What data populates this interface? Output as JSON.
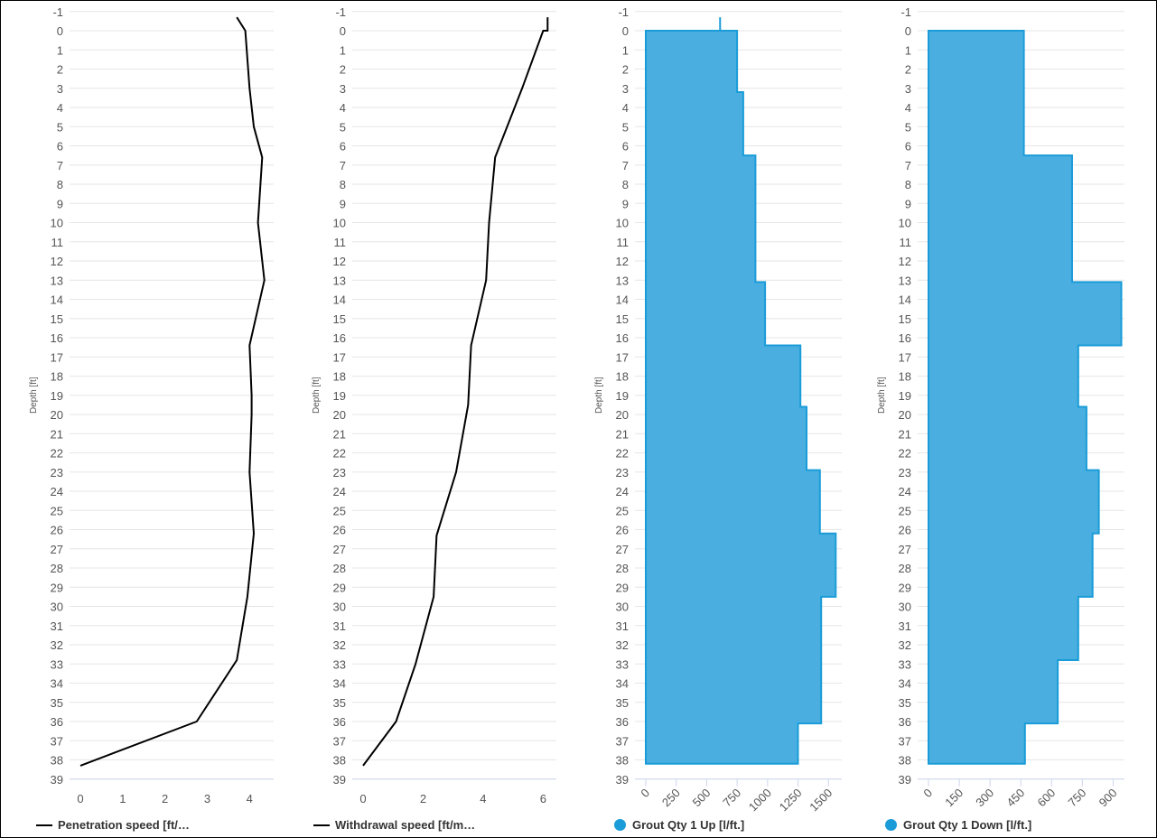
{
  "chart_data": [
    {
      "type": "line",
      "ylabel": "Depth [ft]",
      "ylim": [
        -1,
        39
      ],
      "y_reversed": true,
      "xlim": [
        0,
        4.4
      ],
      "xticks": [
        0,
        1,
        2,
        3,
        4
      ],
      "grid": true,
      "legend": "bottom-left",
      "series": [
        {
          "name": "Penetration speed [ft/…",
          "color": "#000000",
          "x": [
            3.7,
            3.9,
            4.0,
            4.1,
            4.3,
            4.2,
            4.35,
            4.0,
            4.05,
            4.05,
            4.0,
            4.1,
            3.95,
            3.7,
            2.75,
            0.0
          ],
          "y": [
            -0.7,
            0,
            3,
            5,
            6.6,
            10,
            13,
            16.4,
            19,
            20,
            23,
            26.2,
            29.5,
            32.8,
            36,
            38.3
          ]
        }
      ]
    },
    {
      "type": "line",
      "ylabel": "Depth [ft]",
      "ylim": [
        -1,
        39
      ],
      "y_reversed": true,
      "xlim": [
        0,
        6.2
      ],
      "xticks": [
        0,
        2,
        4,
        6
      ],
      "grid": true,
      "legend": "bottom-left",
      "series": [
        {
          "name": "Withdrawal speed [ft/m…",
          "color": "#000000",
          "x": [
            6.15,
            6.15,
            6.0,
            5.3,
            4.4,
            4.2,
            4.1,
            3.6,
            3.5,
            3.1,
            2.45,
            2.35,
            1.75,
            1.1,
            0.0
          ],
          "y": [
            -0.7,
            0,
            0,
            3,
            6.6,
            10,
            13,
            16.4,
            19.5,
            23,
            26.3,
            29.5,
            33,
            36,
            38.3
          ]
        }
      ]
    },
    {
      "type": "area",
      "step": true,
      "ylabel": "Depth [ft]",
      "ylim": [
        -1,
        39
      ],
      "y_reversed": true,
      "xlim": [
        0,
        1550
      ],
      "xticks": [
        0,
        250,
        500,
        750,
        1000,
        1250,
        1500
      ],
      "grid": true,
      "legend": "bottom-left",
      "series": [
        {
          "name": "Grout Qty 1 Up [l/ft.]",
          "color": "#1a9cd8",
          "fill": "#4aafe0",
          "stem": {
            "x": 610,
            "y": [
              -0.7,
              0
            ]
          },
          "steps": [
            {
              "from": 0,
              "to": 3.2,
              "x": 750
            },
            {
              "from": 3.2,
              "to": 6.5,
              "x": 800
            },
            {
              "from": 6.5,
              "to": 13.1,
              "x": 900
            },
            {
              "from": 13.1,
              "to": 16.4,
              "x": 980
            },
            {
              "from": 16.4,
              "to": 19.6,
              "x": 1270
            },
            {
              "from": 19.6,
              "to": 22.9,
              "x": 1320
            },
            {
              "from": 22.9,
              "to": 26.2,
              "x": 1430
            },
            {
              "from": 26.2,
              "to": 29.5,
              "x": 1560
            },
            {
              "from": 29.5,
              "to": 36.1,
              "x": 1440
            },
            {
              "from": 36.1,
              "to": 38.2,
              "x": 1250
            }
          ]
        }
      ]
    },
    {
      "type": "area",
      "step": true,
      "ylabel": "Depth [ft]",
      "ylim": [
        -1,
        39
      ],
      "y_reversed": true,
      "xlim": [
        0,
        920
      ],
      "xticks": [
        0,
        150,
        300,
        450,
        600,
        750,
        900
      ],
      "grid": true,
      "legend": "bottom-left",
      "series": [
        {
          "name": "Grout Qty 1 Down [l/ft.]",
          "color": "#1a9cd8",
          "fill": "#4aafe0",
          "steps": [
            {
              "from": 0,
              "to": 6.5,
              "x": 465
            },
            {
              "from": 6.5,
              "to": 13.1,
              "x": 700
            },
            {
              "from": 13.1,
              "to": 16.4,
              "x": 940
            },
            {
              "from": 16.4,
              "to": 19.6,
              "x": 730
            },
            {
              "from": 19.6,
              "to": 22.9,
              "x": 770
            },
            {
              "from": 22.9,
              "to": 26.2,
              "x": 830
            },
            {
              "from": 26.2,
              "to": 29.5,
              "x": 800
            },
            {
              "from": 29.5,
              "to": 32.8,
              "x": 730
            },
            {
              "from": 32.8,
              "to": 36.1,
              "x": 630
            },
            {
              "from": 36.1,
              "to": 38.2,
              "x": 470
            }
          ]
        }
      ]
    }
  ]
}
